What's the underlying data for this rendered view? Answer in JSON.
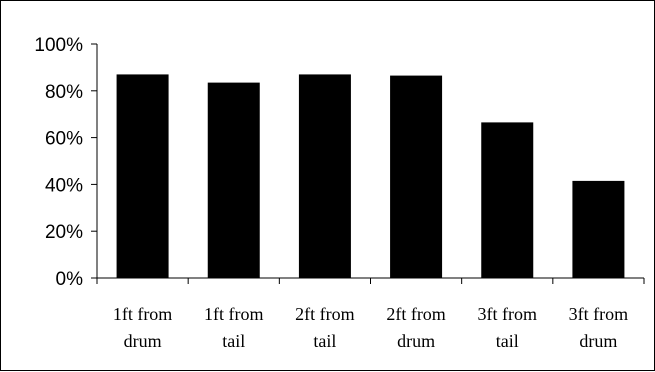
{
  "chart_data": {
    "type": "bar",
    "title": "",
    "xlabel": "",
    "ylabel": "",
    "categories": [
      [
        "1ft from",
        "drum"
      ],
      [
        "1ft from",
        "tail"
      ],
      [
        "2ft from",
        "tail"
      ],
      [
        "2ft from",
        "drum"
      ],
      [
        "3ft from",
        "tail"
      ],
      [
        "3ft from",
        "drum"
      ]
    ],
    "values": [
      87,
      83.5,
      87,
      86.5,
      66.5,
      41.5
    ],
    "ylim": [
      0,
      100
    ],
    "yticks": [
      0,
      20,
      40,
      60,
      80,
      100
    ],
    "ytick_labels": [
      "0%",
      "20%",
      "40%",
      "60%",
      "80%",
      "100%"
    ],
    "grid": false,
    "legend": "none",
    "bar_color": "#000000",
    "axis_color": "#000000"
  }
}
